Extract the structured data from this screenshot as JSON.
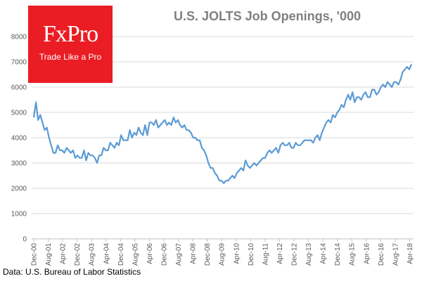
{
  "header": {
    "logo_name": "FxPro",
    "logo_tagline": "Trade Like a Pro"
  },
  "footer": {
    "source": "Data: U.S. Bureau of Labor Statistics"
  },
  "chart_data": {
    "type": "line",
    "title": "U.S. JOLTS Job Openings, '000",
    "xlabel": "",
    "ylabel": "",
    "ylim": [
      0,
      8000
    ],
    "yticks": [
      0,
      1000,
      2000,
      3000,
      4000,
      5000,
      6000,
      7000,
      8000
    ],
    "xticks": [
      "Dec-00",
      "Aug-01",
      "Apr-02",
      "Dec-02",
      "Aug-03",
      "Apr-04",
      "Dec-04",
      "Aug-05",
      "Apr-06",
      "Dec-06",
      "Aug-07",
      "Apr-08",
      "Dec-08",
      "Aug-09",
      "Apr-10",
      "Dec-10",
      "Aug-11",
      "Apr-12",
      "Dec-12",
      "Aug-13",
      "Apr-14",
      "Dec-14",
      "Aug-15",
      "Apr-16",
      "Dec-16",
      "Aug-17",
      "Apr-18"
    ],
    "grid": true,
    "legend": "none",
    "line_color": "#5b9bd5",
    "series": [
      {
        "values": [
          4800,
          5400,
          4700,
          4900,
          4600,
          4300,
          4400,
          4000,
          3700,
          3400,
          3400,
          3700,
          3500,
          3500,
          3400,
          3600,
          3500,
          3400,
          3500,
          3200,
          3300,
          3200,
          3200,
          3500,
          3100,
          3400,
          3300,
          3300,
          3200,
          3000,
          3300,
          3300,
          3600,
          3500,
          3500,
          3800,
          3700,
          3600,
          3800,
          3700,
          4100,
          3900,
          3900,
          3900,
          4300,
          4000,
          4200,
          4100,
          4400,
          4200,
          4100,
          4500,
          4100,
          4600,
          4600,
          4500,
          4700,
          4400,
          4500,
          4600,
          4700,
          4500,
          4600,
          4500,
          4800,
          4600,
          4700,
          4500,
          4400,
          4500,
          4300,
          4300,
          4200,
          4000,
          4000,
          3900,
          3900,
          3600,
          3500,
          3300,
          3000,
          2800,
          2800,
          2600,
          2500,
          2300,
          2300,
          2200,
          2300,
          2300,
          2400,
          2500,
          2400,
          2600,
          2700,
          2800,
          2700,
          3100,
          2900,
          2800,
          2900,
          3000,
          2900,
          3000,
          3100,
          3200,
          3200,
          3400,
          3500,
          3400,
          3500,
          3600,
          3400,
          3700,
          3800,
          3700,
          3700,
          3800,
          3600,
          3600,
          3800,
          3700,
          3700,
          3800,
          3900,
          3900,
          3900,
          3900,
          3800,
          4000,
          4100,
          3900,
          4200,
          4400,
          4600,
          4700,
          4600,
          4900,
          4800,
          5000,
          5100,
          5300,
          5200,
          5500,
          5700,
          5500,
          5800,
          5400,
          5600,
          5600,
          5500,
          5700,
          5800,
          5600,
          5600,
          5900,
          5900,
          5700,
          5800,
          6000,
          6100,
          6000,
          6200,
          6100,
          6000,
          6200,
          6200,
          6100,
          6300,
          6600,
          6700,
          6800,
          6700,
          6900
        ]
      }
    ]
  }
}
